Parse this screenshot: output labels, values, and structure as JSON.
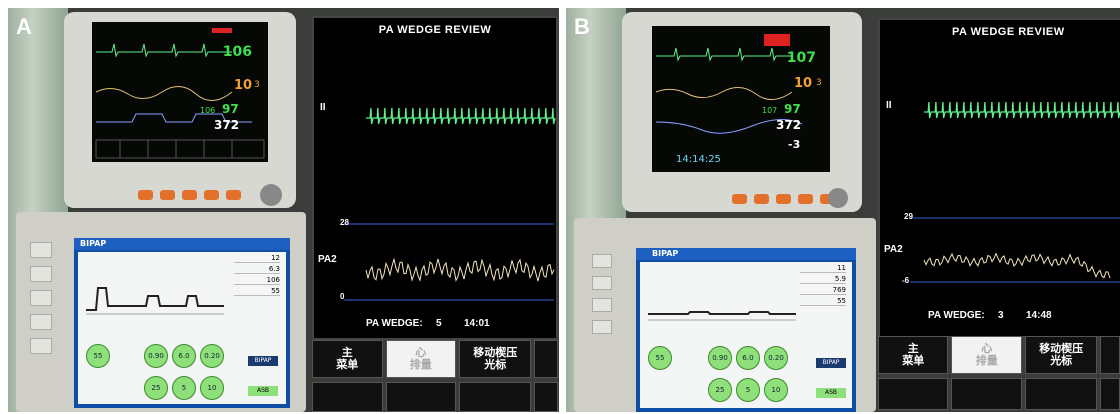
{
  "panels": {
    "a": {
      "label": "A",
      "monitor": {
        "heart_rate": "106",
        "value_mid": "10",
        "value_small": "3",
        "spo2": "97",
        "spo2_small": "106",
        "value_bottom": "372"
      },
      "review": {
        "title": "PA WEDGE REVIEW",
        "lead": "II",
        "scale_top": "28",
        "channel": "PA2",
        "scale_bottom": "0",
        "wedge_label": "PA WEDGE:",
        "wedge_value": "5",
        "time": "14:01"
      },
      "buttons": [
        {
          "line1": "主",
          "line2": "菜单"
        },
        {
          "line1": "心",
          "line2": "排量"
        },
        {
          "line1": "移动楔压",
          "line2": "光标"
        }
      ],
      "vent": {
        "mode": "BIPAP",
        "values": [
          "12",
          "6.3",
          "106",
          "55"
        ],
        "circles": [
          "55",
          "0.90",
          "6.0",
          "0.20",
          "25",
          "5",
          "10"
        ],
        "mode_btn": "BIPAP",
        "asb": "ASB"
      }
    },
    "b": {
      "label": "B",
      "monitor": {
        "heart_rate": "107",
        "value_mid": "10",
        "value_small": "3",
        "spo2": "97",
        "spo2_small": "107",
        "value_bottom": "372",
        "value_neg": "-3",
        "clock": "14:14:25"
      },
      "review": {
        "title": "PA WEDGE REVIEW",
        "lead": "II",
        "scale_top": "29",
        "channel": "PA2",
        "scale_bottom": "-6",
        "wedge_label": "PA WEDGE:",
        "wedge_value": "3",
        "time": "14:48"
      },
      "buttons": [
        {
          "line1": "主",
          "line2": "菜单"
        },
        {
          "line1": "心",
          "line2": "排量"
        },
        {
          "line1": "移动楔压",
          "line2": "光标"
        }
      ],
      "vent": {
        "mode": "BIPAP",
        "values": [
          "11",
          "5.9",
          "769",
          "55"
        ],
        "circles": [
          "55",
          "0.90",
          "6.0",
          "0.20",
          "25",
          "5",
          "10"
        ],
        "mode_btn": "BIPAP",
        "asb": "ASB"
      }
    }
  },
  "colors": {
    "ecg": "#5ff08a",
    "pa": "#f3e6b8",
    "vent_screen": "#0d4fa6",
    "knob": "#e3702b"
  }
}
